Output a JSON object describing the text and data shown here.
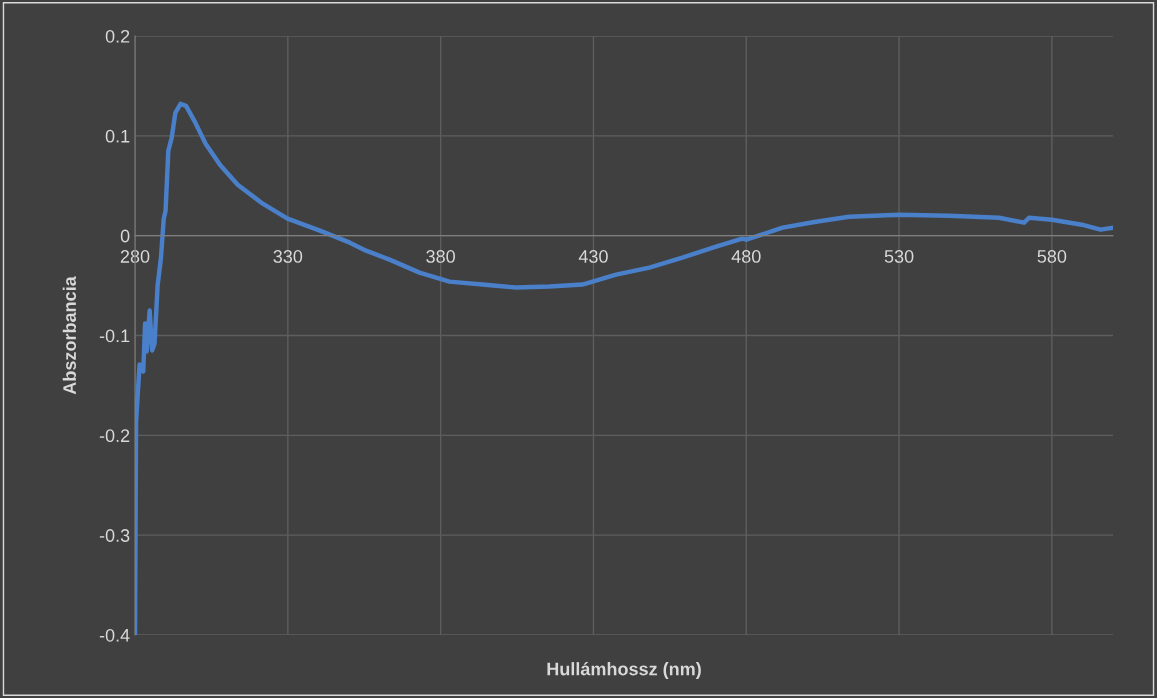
{
  "chart_data": {
    "type": "line",
    "xlabel": "Hullámhossz (nm)",
    "ylabel": "Abszorbancia",
    "series": [
      {
        "color": "#4a7fc9",
        "x": [
          280,
          280.36,
          281.5,
          282.7,
          283.3,
          283.8,
          284.8,
          285.6,
          286.4,
          287.4,
          288.5,
          289.4,
          290.0,
          290.9,
          292.0,
          293.2,
          294.9,
          296.7,
          299.6,
          303.1,
          307.8,
          313.6,
          321.8,
          329.9,
          340.5,
          350.3,
          355.6,
          363.3,
          373.1,
          382.9,
          393.7,
          404.7,
          415.6,
          426.4,
          437.4,
          448.3,
          459.1,
          470.1,
          478.7,
          480,
          491.9,
          502.8,
          513.7,
          530,
          546.4,
          562.7,
          570.9,
          572.5,
          580,
          589.8,
          595.9,
          600
        ],
        "values": [
          -0.4,
          -0.186,
          -0.129,
          -0.136,
          -0.088,
          -0.116,
          -0.075,
          -0.115,
          -0.108,
          -0.05,
          -0.022,
          0.017,
          0.025,
          0.085,
          0.098,
          0.123,
          0.132,
          0.13,
          0.114,
          0.092,
          0.071,
          0.051,
          0.032,
          0.017,
          0.005,
          -0.007,
          -0.015,
          -0.024,
          -0.037,
          -0.046,
          -0.049,
          -0.052,
          -0.051,
          -0.049,
          -0.039,
          -0.032,
          -0.022,
          -0.011,
          -0.003,
          -0.004,
          0.008,
          0.014,
          0.019,
          0.021,
          0.02,
          0.018,
          0.013,
          0.018,
          0.016,
          0.011,
          0.006,
          0.008
        ]
      }
    ],
    "xlim": [
      280,
      600
    ],
    "xticks": [
      280,
      330,
      380,
      430,
      480,
      530,
      580
    ],
    "ylim": [
      -0.4,
      0.2
    ],
    "yticks": [
      -0.4,
      -0.3,
      -0.2,
      -0.1,
      0,
      0.1,
      0.2
    ],
    "grid": true,
    "marker": "none",
    "line_style": "solid"
  }
}
